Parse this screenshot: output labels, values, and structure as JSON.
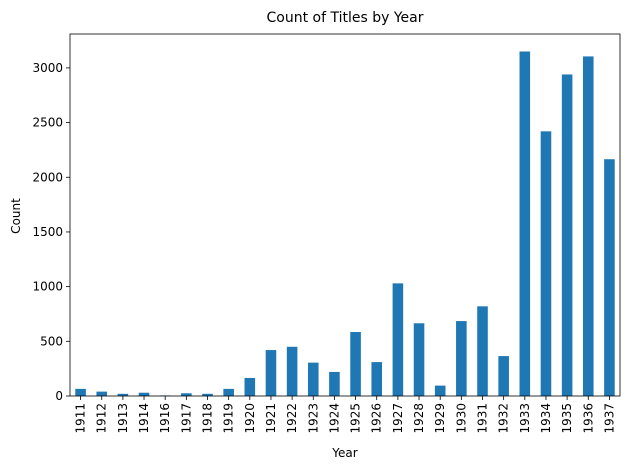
{
  "chart_data": {
    "type": "bar",
    "title": "Count of Titles by Year",
    "xlabel": "Year",
    "ylabel": "Count",
    "categories": [
      "1911",
      "1912",
      "1913",
      "1914",
      "1916",
      "1917",
      "1918",
      "1919",
      "1920",
      "1921",
      "1922",
      "1923",
      "1924",
      "1925",
      "1926",
      "1927",
      "1928",
      "1929",
      "1930",
      "1931",
      "1932",
      "1933",
      "1934",
      "1935",
      "1936",
      "1937"
    ],
    "values": [
      65,
      40,
      20,
      30,
      5,
      25,
      20,
      65,
      165,
      420,
      450,
      305,
      220,
      585,
      310,
      1030,
      665,
      95,
      685,
      820,
      365,
      3150,
      2420,
      2940,
      3105,
      2165
    ],
    "ylim": [
      0,
      3310
    ],
    "yticks": [
      0,
      500,
      1000,
      1500,
      2000,
      2500,
      3000
    ],
    "bar_color": "#1f77b4",
    "grid": false,
    "legend": false
  }
}
